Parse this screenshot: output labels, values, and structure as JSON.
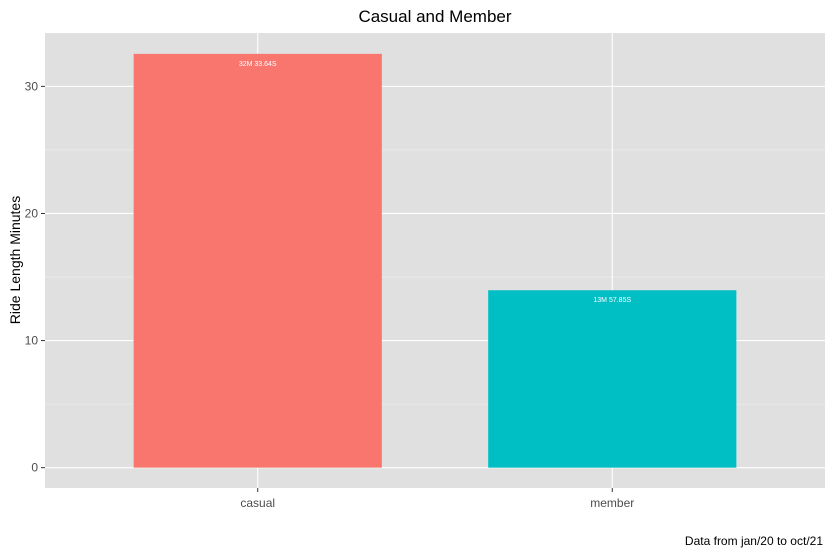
{
  "chart_data": {
    "type": "bar",
    "title": "Casual and Member",
    "xlabel": "",
    "ylabel": "Ride Length Minutes",
    "caption": "Data from jan/20 to oct/21",
    "categories": [
      "casual",
      "member"
    ],
    "values": [
      32.56,
      13.96
    ],
    "bar_labels": [
      "32M 33.64S",
      "13M 57.85S"
    ],
    "colors": [
      "#F8766D",
      "#00BFC4"
    ],
    "ylim": [
      -1.6,
      34.2
    ],
    "yticks": [
      0,
      10,
      20,
      30
    ],
    "grid": true,
    "background": "#E0E0E0",
    "legend": "none"
  }
}
